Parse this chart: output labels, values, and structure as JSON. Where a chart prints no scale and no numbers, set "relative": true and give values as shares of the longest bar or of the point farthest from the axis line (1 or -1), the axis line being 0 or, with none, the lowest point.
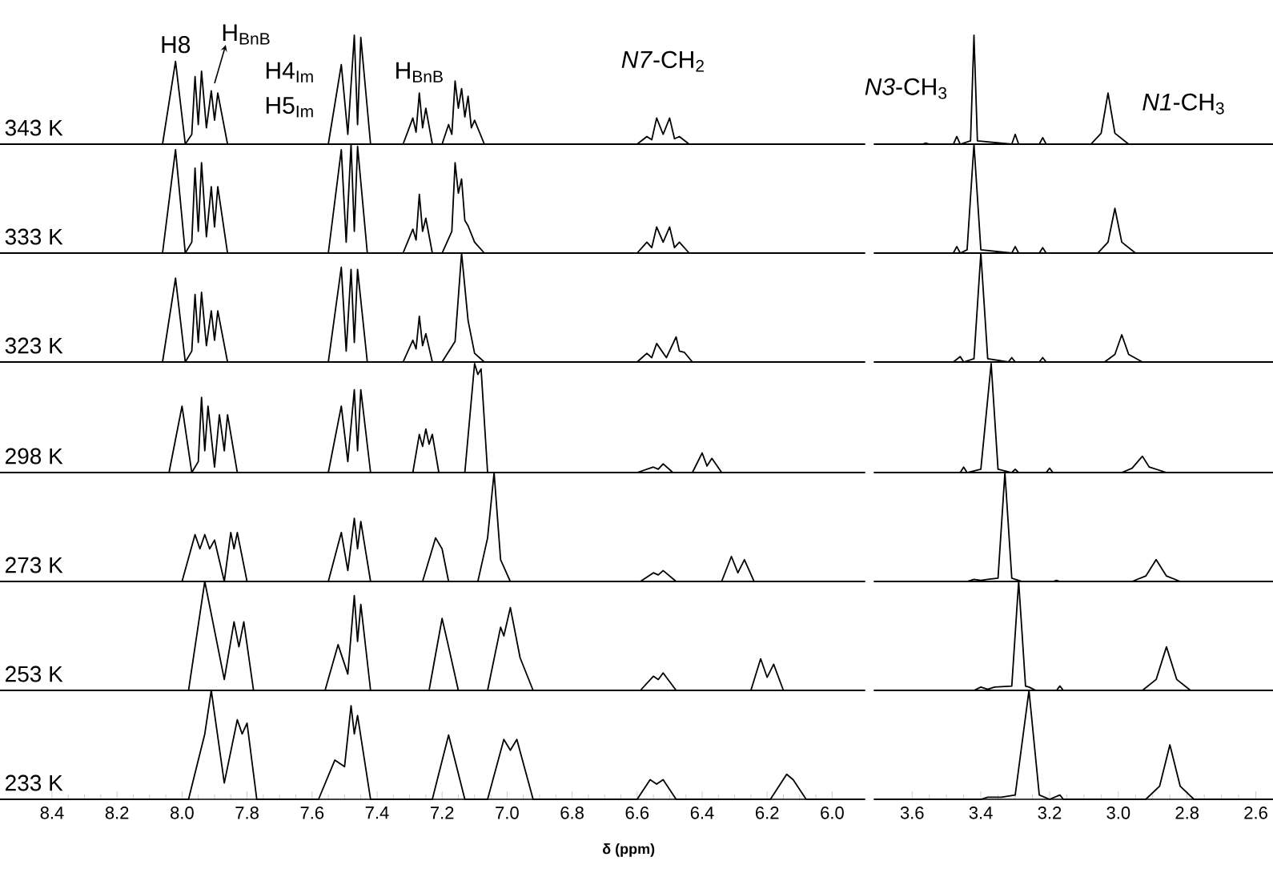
{
  "chart_data": [
    {
      "type": "line",
      "relative": true,
      "ylabel": "343 K",
      "color": "#000000",
      "xlim": [
        8.56,
        5.9
      ],
      "tick_labels": false,
      "xticks": [
        8.4,
        8.2,
        8,
        7.8,
        7.6,
        7.4,
        7.2,
        7,
        6.8,
        6.6,
        6.4,
        6.2,
        6
      ],
      "annotations": [
        {
          "text": "H8",
          "x": 8.02,
          "y": 0.76
        },
        {
          "text": "H$_{BnB}$",
          "x": 7.9,
          "y": 0.5
        },
        "H4$_{Im}$",
        "H5$_{Im}$",
        "H$_{BnB}$",
        "*N7*-CH$_{2}$"
      ],
      "x": [
        8.56,
        8.06,
        8.02,
        7.99,
        7.97,
        7.96,
        7.95,
        7.94,
        7.925,
        7.91,
        7.9,
        7.89,
        7.86,
        7.55,
        7.51,
        7.49,
        7.47,
        7.46,
        7.45,
        7.42,
        7.32,
        7.29,
        7.28,
        7.27,
        7.26,
        7.25,
        7.23,
        7.2,
        7.18,
        7.17,
        7.16,
        7.15,
        7.14,
        7.13,
        7.12,
        7.11,
        7.1,
        7.07,
        6.6,
        6.57,
        6.555,
        6.54,
        6.52,
        6.5,
        6.485,
        6.47,
        6.44,
        5.9
      ],
      "values": [
        0,
        0,
        0.76,
        0,
        0.09,
        0.62,
        0.18,
        0.67,
        0.15,
        0.49,
        0.22,
        0.47,
        0,
        0,
        0.73,
        0.09,
        1,
        0.18,
        0.98,
        0,
        0,
        0.24,
        0.11,
        0.47,
        0.15,
        0.33,
        0,
        0,
        0.18,
        0.09,
        0.58,
        0.33,
        0.51,
        0.25,
        0.44,
        0.15,
        0.22,
        0,
        0,
        0.07,
        0.04,
        0.24,
        0.09,
        0.24,
        0.05,
        0.07,
        0,
        0
      ]
    },
    {
      "type": "line",
      "relative": true,
      "color": "#000000",
      "xlim": [
        3.71,
        2.55
      ],
      "tick_labels": false,
      "annotations": [
        "*N3*-CH$_{3}$",
        "*N1*-CH$_{3}$"
      ],
      "xticks": [
        3.6,
        3.4,
        3.2,
        3,
        2.8,
        2.6
      ],
      "x": [
        3.71,
        3.57,
        3.56,
        3.55,
        3.48,
        3.47,
        3.46,
        3.43,
        3.42,
        3.41,
        3.31,
        3.3,
        3.29,
        3.23,
        3.22,
        3.21,
        3.08,
        3.05,
        3.03,
        3.01,
        2.97,
        2.55
      ],
      "values": [
        0,
        0,
        0.01,
        0,
        0,
        0.07,
        0,
        0.03,
        1,
        0.03,
        0,
        0.09,
        0,
        0,
        0.06,
        0,
        0,
        0.1,
        0.47,
        0.1,
        0,
        0
      ]
    },
    {
      "type": "line",
      "relative": true,
      "ylabel": "333 K",
      "color": "#000000",
      "xlim": [
        8.56,
        5.9
      ],
      "tick_labels": false,
      "xticks": [
        8.4,
        8.2,
        8,
        7.8,
        7.6,
        7.4,
        7.2,
        7,
        6.8,
        6.6,
        6.4,
        6.2,
        6
      ],
      "x": [
        8.56,
        8.06,
        8.02,
        7.99,
        7.97,
        7.96,
        7.95,
        7.94,
        7.925,
        7.91,
        7.9,
        7.89,
        7.86,
        7.55,
        7.51,
        7.495,
        7.48,
        7.47,
        7.46,
        7.43,
        7.32,
        7.29,
        7.28,
        7.27,
        7.26,
        7.25,
        7.23,
        7.2,
        7.17,
        7.16,
        7.15,
        7.14,
        7.13,
        7.12,
        7.1,
        7.07,
        6.6,
        6.57,
        6.555,
        6.54,
        6.52,
        6.5,
        6.485,
        6.47,
        6.44,
        5.9
      ],
      "values": [
        0,
        0,
        0.95,
        0,
        0.1,
        0.78,
        0.2,
        0.83,
        0.15,
        0.61,
        0.24,
        0.61,
        0,
        0,
        0.95,
        0.1,
        1,
        0.2,
        0.98,
        0,
        0,
        0.22,
        0.12,
        0.54,
        0.2,
        0.32,
        0,
        0,
        0.2,
        0.83,
        0.55,
        0.68,
        0.3,
        0.25,
        0.1,
        0,
        0,
        0.1,
        0.05,
        0.24,
        0.1,
        0.24,
        0.05,
        0.1,
        0,
        0
      ]
    },
    {
      "type": "line",
      "relative": true,
      "color": "#000000",
      "xlim": [
        3.71,
        2.55
      ],
      "tick_labels": false,
      "xticks": [
        3.6,
        3.4,
        3.2,
        3,
        2.8,
        2.6
      ],
      "x": [
        3.71,
        3.48,
        3.47,
        3.46,
        3.44,
        3.42,
        3.4,
        3.31,
        3.3,
        3.29,
        3.23,
        3.22,
        3.21,
        3.06,
        3.03,
        3.01,
        2.99,
        2.95,
        2.55
      ],
      "values": [
        0,
        0,
        0.06,
        0,
        0.03,
        1,
        0.03,
        0,
        0.06,
        0,
        0,
        0.05,
        0,
        0,
        0.1,
        0.41,
        0.1,
        0,
        0
      ]
    },
    {
      "type": "line",
      "relative": true,
      "ylabel": "323 K",
      "color": "#000000",
      "xlim": [
        8.56,
        5.9
      ],
      "tick_labels": false,
      "xticks": [
        8.4,
        8.2,
        8,
        7.8,
        7.6,
        7.4,
        7.2,
        7,
        6.8,
        6.6,
        6.4,
        6.2,
        6
      ],
      "x": [
        8.56,
        8.06,
        8.02,
        7.99,
        7.97,
        7.96,
        7.95,
        7.94,
        7.925,
        7.91,
        7.9,
        7.89,
        7.86,
        7.55,
        7.51,
        7.495,
        7.48,
        7.47,
        7.46,
        7.43,
        7.32,
        7.29,
        7.28,
        7.27,
        7.26,
        7.25,
        7.23,
        7.2,
        7.16,
        7.14,
        7.12,
        7.1,
        7.07,
        6.6,
        6.57,
        6.555,
        6.54,
        6.51,
        6.48,
        6.47,
        6.455,
        6.43,
        5.9
      ],
      "values": [
        0,
        0,
        0.77,
        0,
        0.1,
        0.62,
        0.18,
        0.64,
        0.15,
        0.47,
        0.2,
        0.47,
        0,
        0,
        0.87,
        0.1,
        0.85,
        0.18,
        0.85,
        0,
        0,
        0.2,
        0.12,
        0.42,
        0.15,
        0.26,
        0,
        0,
        0.19,
        1,
        0.38,
        0.08,
        0,
        0,
        0.08,
        0.04,
        0.17,
        0.04,
        0.23,
        0.1,
        0.09,
        0,
        0
      ]
    },
    {
      "type": "line",
      "relative": true,
      "color": "#000000",
      "xlim": [
        3.71,
        2.55
      ],
      "tick_labels": false,
      "xticks": [
        3.6,
        3.4,
        3.2,
        3,
        2.8,
        2.6
      ],
      "x": [
        3.71,
        3.48,
        3.46,
        3.45,
        3.42,
        3.4,
        3.38,
        3.32,
        3.31,
        3.3,
        3.23,
        3.22,
        3.21,
        3.04,
        3.01,
        2.99,
        2.97,
        2.93,
        2.55
      ],
      "values": [
        0,
        0,
        0.05,
        0,
        0.03,
        1,
        0.03,
        0,
        0.04,
        0,
        0,
        0.04,
        0,
        0,
        0.07,
        0.25,
        0.07,
        0,
        0
      ]
    },
    {
      "type": "line",
      "relative": true,
      "ylabel": "298 K",
      "color": "#000000",
      "xlim": [
        8.56,
        5.9
      ],
      "tick_labels": false,
      "xticks": [
        8.4,
        8.2,
        8,
        7.8,
        7.6,
        7.4,
        7.2,
        7,
        6.8,
        6.6,
        6.4,
        6.2,
        6
      ],
      "x": [
        8.56,
        8.04,
        8.0,
        7.97,
        7.95,
        7.94,
        7.93,
        7.92,
        7.9,
        7.885,
        7.87,
        7.86,
        7.83,
        7.55,
        7.51,
        7.49,
        7.47,
        7.46,
        7.45,
        7.42,
        7.29,
        7.27,
        7.26,
        7.25,
        7.24,
        7.23,
        7.21,
        7.13,
        7.1,
        7.09,
        7.08,
        7.06,
        6.6,
        6.55,
        6.535,
        6.52,
        6.49,
        6.43,
        6.4,
        6.385,
        6.37,
        6.34,
        5.9
      ],
      "values": [
        0,
        0,
        0.61,
        0,
        0.1,
        0.69,
        0.2,
        0.61,
        0.05,
        0.53,
        0.2,
        0.53,
        0,
        0,
        0.61,
        0.1,
        0.76,
        0.2,
        0.76,
        0,
        0,
        0.35,
        0.24,
        0.4,
        0.26,
        0.35,
        0,
        0,
        1,
        0.9,
        0.95,
        0,
        0,
        0.05,
        0.03,
        0.08,
        0,
        0,
        0.18,
        0.06,
        0.13,
        0,
        0
      ]
    },
    {
      "type": "line",
      "relative": true,
      "color": "#000000",
      "xlim": [
        3.71,
        2.55
      ],
      "tick_labels": false,
      "xticks": [
        3.6,
        3.4,
        3.2,
        3,
        2.8,
        2.6
      ],
      "x": [
        3.71,
        3.46,
        3.45,
        3.44,
        3.4,
        3.37,
        3.35,
        3.31,
        3.3,
        3.29,
        3.21,
        3.2,
        3.19,
        2.99,
        2.96,
        2.93,
        2.91,
        2.86,
        2.55
      ],
      "values": [
        0,
        0,
        0.05,
        0,
        0.03,
        1,
        0.03,
        0,
        0.03,
        0,
        0,
        0.04,
        0,
        0,
        0.04,
        0.15,
        0.05,
        0,
        0
      ]
    },
    {
      "type": "line",
      "relative": true,
      "ylabel": "273 K",
      "color": "#000000",
      "xlim": [
        8.56,
        5.9
      ],
      "tick_labels": false,
      "xticks": [
        8.4,
        8.2,
        8,
        7.8,
        7.6,
        7.4,
        7.2,
        7,
        6.8,
        6.6,
        6.4,
        6.2,
        6
      ],
      "x": [
        8.56,
        8.0,
        7.96,
        7.945,
        7.93,
        7.915,
        7.9,
        7.87,
        7.85,
        7.84,
        7.83,
        7.8,
        7.55,
        7.51,
        7.49,
        7.47,
        7.46,
        7.45,
        7.42,
        7.26,
        7.23,
        7.22,
        7.2,
        7.18,
        7.09,
        7.06,
        7.04,
        7.02,
        6.99,
        6.59,
        6.55,
        6.535,
        6.52,
        6.48,
        6.34,
        6.31,
        6.29,
        6.27,
        6.24,
        5.9
      ],
      "values": [
        0,
        0,
        0.43,
        0.3,
        0.43,
        0.3,
        0.38,
        0,
        0.45,
        0.3,
        0.45,
        0,
        0,
        0.45,
        0.1,
        0.58,
        0.3,
        0.55,
        0,
        0,
        0.3,
        0.4,
        0.3,
        0,
        0,
        0.4,
        1,
        0.2,
        0,
        0,
        0.08,
        0.06,
        0.1,
        0,
        0,
        0.23,
        0.08,
        0.2,
        0,
        0
      ]
    },
    {
      "type": "line",
      "relative": true,
      "color": "#000000",
      "xlim": [
        3.71,
        2.55
      ],
      "tick_labels": false,
      "xticks": [
        3.6,
        3.4,
        3.2,
        3,
        2.8,
        2.6
      ],
      "x": [
        3.71,
        3.44,
        3.42,
        3.4,
        3.38,
        3.35,
        3.33,
        3.31,
        3.3,
        3.28,
        3.19,
        3.18,
        3.17,
        2.96,
        2.92,
        2.89,
        2.86,
        2.82,
        2.55
      ],
      "values": [
        0,
        0,
        0.02,
        0.01,
        0.02,
        0.03,
        1,
        0.03,
        0.02,
        0,
        0,
        0.01,
        0,
        0,
        0.05,
        0.2,
        0.05,
        0,
        0
      ]
    },
    {
      "type": "line",
      "relative": true,
      "ylabel": "253 K",
      "color": "#000000",
      "xlim": [
        8.56,
        5.9
      ],
      "tick_labels": false,
      "xticks": [
        8.4,
        8.2,
        8,
        7.8,
        7.6,
        7.4,
        7.2,
        7,
        6.8,
        6.6,
        6.4,
        6.2,
        6
      ],
      "x": [
        8.56,
        7.98,
        7.93,
        7.9,
        7.87,
        7.84,
        7.825,
        7.81,
        7.78,
        7.56,
        7.52,
        7.49,
        7.47,
        7.46,
        7.45,
        7.42,
        7.24,
        7.2,
        7.18,
        7.15,
        7.06,
        7.02,
        7.01,
        6.99,
        6.96,
        6.92,
        6.59,
        6.55,
        6.535,
        6.52,
        6.48,
        6.25,
        6.22,
        6.2,
        6.18,
        6.15,
        5.9
      ],
      "values": [
        0,
        0,
        1,
        0.55,
        0.1,
        0.63,
        0.4,
        0.63,
        0,
        0,
        0.42,
        0.15,
        0.87,
        0.45,
        0.79,
        0,
        0,
        0.66,
        0.4,
        0,
        0,
        0.58,
        0.5,
        0.76,
        0.3,
        0,
        0,
        0.13,
        0.1,
        0.16,
        0,
        0,
        0.29,
        0.12,
        0.24,
        0,
        0
      ]
    },
    {
      "type": "line",
      "relative": true,
      "color": "#000000",
      "xlim": [
        3.71,
        2.55
      ],
      "tick_labels": false,
      "xticks": [
        3.6,
        3.4,
        3.2,
        3,
        2.8,
        2.6
      ],
      "x": [
        3.71,
        3.42,
        3.4,
        3.38,
        3.36,
        3.31,
        3.29,
        3.27,
        3.26,
        3.24,
        3.18,
        3.17,
        3.16,
        2.93,
        2.89,
        2.86,
        2.83,
        2.79,
        2.55
      ],
      "values": [
        0,
        0,
        0.03,
        0.01,
        0.03,
        0.04,
        1,
        0.04,
        0.03,
        0,
        0,
        0.04,
        0,
        0,
        0.1,
        0.4,
        0.1,
        0,
        0
      ]
    },
    {
      "type": "line",
      "relative": true,
      "ylabel": "233 K",
      "xlabel": "δ (ppm)",
      "color": "#000000",
      "xlim": [
        8.56,
        5.9
      ],
      "tick_labels": "x",
      "xticks": [
        8.4,
        8.2,
        {
          "value": 8,
          "label": "8.0"
        },
        7.8,
        7.6,
        7.4,
        7.2,
        {
          "value": 7,
          "label": "7.0"
        },
        6.8,
        6.6,
        6.4,
        6.2,
        {
          "value": 6,
          "label": "6.0"
        }
      ],
      "x": [
        8.56,
        7.98,
        7.93,
        7.91,
        7.87,
        7.83,
        7.815,
        7.8,
        7.77,
        7.58,
        7.53,
        7.5,
        7.48,
        7.47,
        7.46,
        7.42,
        7.23,
        7.18,
        7.13,
        7.06,
        7.01,
        6.99,
        6.97,
        6.92,
        6.6,
        6.56,
        6.54,
        6.52,
        6.48,
        6.19,
        6.14,
        6.12,
        6.08,
        5.9
      ],
      "values": [
        0,
        0,
        0.6,
        1,
        0.15,
        0.73,
        0.6,
        0.7,
        0,
        0,
        0.36,
        0.3,
        0.86,
        0.6,
        0.77,
        0,
        0,
        0.59,
        0,
        0,
        0.55,
        0.45,
        0.55,
        0,
        0,
        0.18,
        0.14,
        0.18,
        0,
        0,
        0.23,
        0.18,
        0,
        0
      ]
    },
    {
      "type": "line",
      "relative": true,
      "color": "#000000",
      "xlim": [
        3.71,
        2.55
      ],
      "tick_labels": "x",
      "xticks": [
        3.6,
        3.4,
        3.2,
        {
          "value": 3,
          "label": "3.0"
        },
        2.8,
        2.6
      ],
      "x": [
        3.71,
        3.4,
        3.38,
        3.36,
        3.34,
        3.3,
        3.26,
        3.23,
        3.2,
        3.17,
        3.16,
        2.92,
        2.88,
        2.85,
        2.82,
        2.78,
        2.55
      ],
      "values": [
        0,
        0,
        0.02,
        0.02,
        0.02,
        0.04,
        1,
        0.04,
        0,
        0.04,
        0,
        0,
        0.12,
        0.5,
        0.12,
        0,
        0
      ]
    }
  ]
}
